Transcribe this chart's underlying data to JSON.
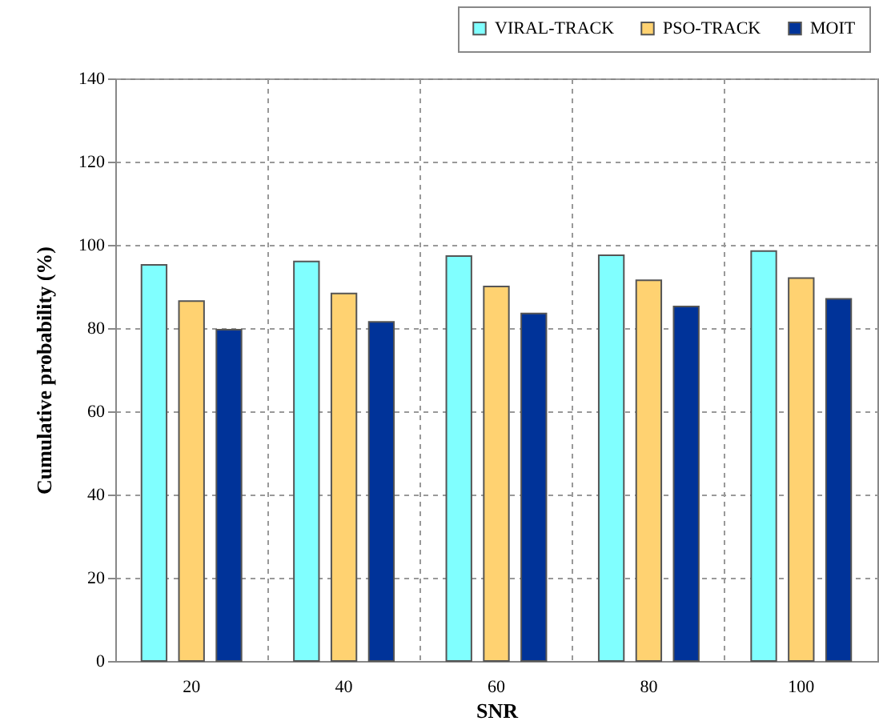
{
  "chart_data": {
    "type": "bar",
    "xlabel": "SNR",
    "ylabel": "Cumulative probability (%)",
    "categories": [
      "20",
      "40",
      "60",
      "80",
      "100"
    ],
    "series": [
      {
        "name": "VIRAL-TRACK",
        "color": "#80ffff",
        "values": [
          95.2,
          96,
          97.3,
          97.5,
          98.5
        ]
      },
      {
        "name": "PSO-TRACK",
        "color": "#ffd271",
        "values": [
          86.5,
          88.3,
          90,
          91.5,
          92
        ]
      },
      {
        "name": "MOIT",
        "color": "#003399",
        "values": [
          79.6,
          81.5,
          83.5,
          85.2,
          87
        ]
      }
    ],
    "ylim": [
      0,
      140
    ],
    "yticks": [
      0,
      20,
      40,
      60,
      80,
      100,
      120,
      140
    ],
    "grid": true,
    "legend": "top right"
  }
}
